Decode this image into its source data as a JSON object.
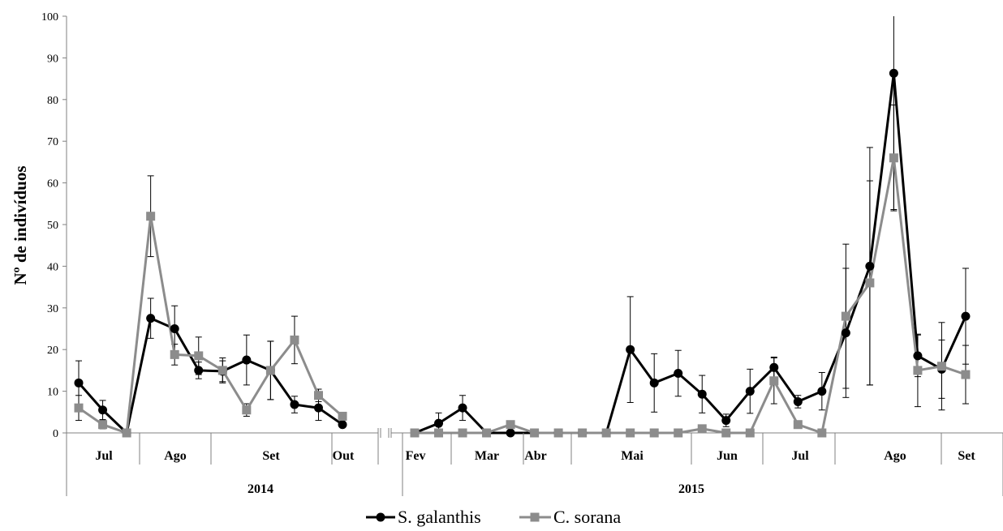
{
  "chart_data": {
    "type": "line",
    "title": "",
    "ylabel": "Nº de indivíduos",
    "xlabel": "",
    "ylim": [
      0,
      100
    ],
    "yticks": [
      0,
      10,
      20,
      30,
      40,
      50,
      60,
      70,
      80,
      90,
      100
    ],
    "grid": false,
    "legend_position": "bottom",
    "years": [
      {
        "label": "2014",
        "months": [
          "Jul",
          "Ago",
          "Set",
          "Out"
        ]
      },
      {
        "label": "2015",
        "months": [
          "Fev",
          "Mar",
          "Abr",
          "Mai",
          "Jun",
          "Jul",
          "Ago",
          "Set"
        ]
      }
    ],
    "series": [
      {
        "name": "S. galanthis",
        "color": "#000000",
        "marker": "circle",
        "segments": [
          {
            "values": [
              12,
              5.5,
              0,
              27.5,
              25,
              15,
              14.8,
              17.5,
              15,
              6.8,
              6,
              2
            ],
            "errors": [
              5.3,
              2.3,
              0,
              4.8,
              5.5,
              2,
              2.5,
              6,
              7,
              2,
              3,
              0.5
            ]
          },
          {
            "values": [
              0,
              2.3,
              6,
              0,
              0,
              0,
              0,
              0,
              0,
              20,
              12,
              14.3,
              9.3,
              3,
              10,
              15.7,
              7.5,
              10,
              24,
              40,
              86.3,
              18.5,
              15.3,
              28
            ],
            "errors": [
              0,
              2.5,
              3,
              0,
              0,
              0,
              0,
              0,
              0,
              12.7,
              7,
              5.5,
              4.5,
              1.5,
              5.3,
              2.5,
              1.5,
              4.5,
              15.5,
              28.5,
              32.7,
              5,
              7,
              11.5
            ]
          }
        ]
      },
      {
        "name": "C. sorana",
        "color": "#8c8c8c",
        "marker": "square",
        "segments": [
          {
            "values": [
              6,
              2,
              0,
              52,
              18.8,
              18.5,
              15,
              5.5,
              15,
              22.3,
              9,
              4
            ],
            "errors": [
              3,
              1,
              0,
              9.7,
              2.5,
              4.5,
              3,
              1.5,
              7,
              5.7,
              1.5,
              0.5
            ]
          },
          {
            "values": [
              0,
              0,
              0,
              0,
              2,
              0,
              0,
              0,
              0,
              0,
              0,
              0,
              1,
              0,
              0,
              12.5,
              2,
              0,
              28,
              36,
              66,
              15,
              16,
              14
            ],
            "errors": [
              0,
              0,
              0,
              0,
              0.5,
              0,
              0,
              0,
              0,
              0,
              0,
              0,
              0.5,
              0,
              0,
              5.5,
              0,
              0,
              17.3,
              24.5,
              12.7,
              8.7,
              10.5,
              7
            ]
          }
        ]
      }
    ]
  }
}
